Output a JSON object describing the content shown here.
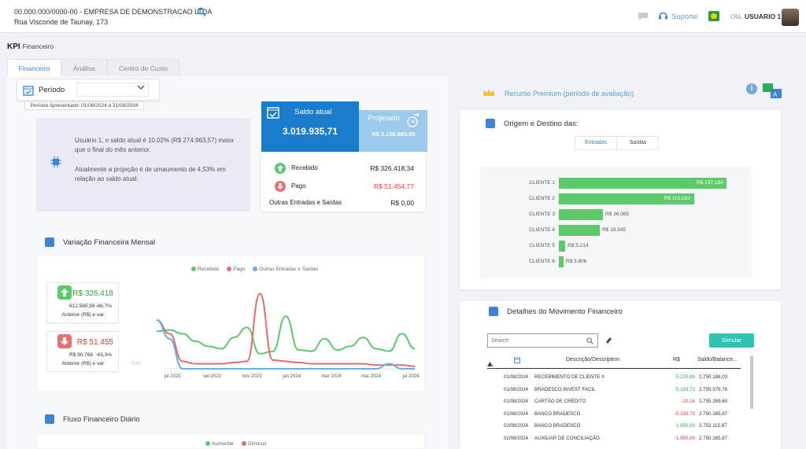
{
  "header": {
    "company": "00.000.000/0000-00 - EMPRESA DE DEMONSTRACAO LTDA",
    "address": "Rua Visconde de Taunay, 173",
    "support": "Suporte",
    "greeting": "Olá,",
    "user": "USUARIO 1"
  },
  "page": {
    "title": "KPI",
    "subtitle": "Financeiro"
  },
  "tabs": [
    {
      "label": "Financeiro",
      "active": true
    },
    {
      "label": "Análise"
    },
    {
      "label": "Centro de Custo"
    }
  ],
  "periodo": {
    "label": "Período",
    "select_value": "",
    "note": "Período Apresentado: 01/08/2024 à 31/08/2024"
  },
  "insight": {
    "text1": "Usuário 1, o saldo atual é 10,02% (R$ 274.963,57) maior que o final do mês anterior.",
    "text2": "Atualmente a projeção é de umaumento de 4,53% em relação ao saldo atual."
  },
  "saldo": {
    "label": "Saldo atual",
    "value": "3.019.935,71",
    "proj_label": "Projetado",
    "proj_value": "R$ 3.156.693,66"
  },
  "movements": [
    {
      "label": "Recebido",
      "value": "R$ 326.418,34",
      "color": "#222"
    },
    {
      "label": "Pago",
      "value": "R$ 51.454,77",
      "color": "#e03b3b"
    },
    {
      "label": "Outras Entradas e Saídas",
      "value": "R$ 0,00",
      "color": "#222"
    }
  ],
  "variacao": {
    "title": "Variação Financeira Mensal",
    "legend": [
      "Recebido",
      "Pago",
      "Outras Entradas e Saídas"
    ],
    "zero_label": "0,00",
    "recebido": {
      "value": "R$ 326.418",
      "prev": "612.565,99",
      "var": "-46,7%",
      "note": "Anterior (R$) e var."
    },
    "pago": {
      "value": "R$ 51.455",
      "prev": "R$ 90.768",
      "var": "-43,3%",
      "note": "Anterior (R$) e var."
    }
  },
  "fluxo": {
    "title": "Fluxo Financeiro Diário",
    "legend": [
      "Aumentar",
      "Diminuir"
    ]
  },
  "premium": {
    "label": "Recurso Premium (período de avaliação)"
  },
  "origem": {
    "title": "Origem e Destino das:",
    "tabs": [
      "Entradas",
      "Saídas"
    ],
    "active_tab": "Entradas"
  },
  "detalhes": {
    "title": "Detalhes do Movimento Financeiro",
    "search_placeholder": "Search",
    "simulate": "Simular",
    "headers": [
      "Descrição/Description",
      "R$",
      "Saldo/Balance..."
    ],
    "rows": [
      {
        "date": "01/08/2024",
        "desc": "RECEBIMENTO DE CLIENTE X",
        "value": "5.215,89",
        "balance": "2.750.186,03",
        "sign": "pos"
      },
      {
        "date": "01/08/2024",
        "desc": "BRADESCO INVEST FACIL",
        "value": "5.193,73",
        "balance": "2.755.379,76",
        "sign": "pos"
      },
      {
        "date": "01/08/2024",
        "desc": "CARTÃO DE CRÉDITO",
        "value": "-20,16",
        "balance": "2.755.359,60",
        "sign": "neg"
      },
      {
        "date": "01/08/2024",
        "desc": "BANCO BRADESCO",
        "value": "-5.193,73",
        "balance": "2.750.165,87",
        "sign": "neg"
      },
      {
        "date": "02/08/2024",
        "desc": "BANCO BRADESCO",
        "value": "1.950,00",
        "balance": "2.752.115,87",
        "sign": "pos"
      },
      {
        "date": "02/08/2024",
        "desc": "AUXILIAR DE CONCILIAÇÃO",
        "value": "-1.950,00",
        "balance": "2.750.165,87",
        "sign": "neg"
      }
    ]
  },
  "chart_data": [
    {
      "type": "bar",
      "title": "",
      "categories": [
        "CLIENTE 1",
        "CLIENTE 2",
        "CLIENTE 3",
        "CLIENTE 4",
        "CLIENTE 5",
        "CLIENTE 6"
      ],
      "values": [
        137184,
        110583,
        36085,
        33545,
        5214,
        3806
      ],
      "labels": [
        "R$ 137.184",
        "R$ 110.583",
        "R$ 36.085",
        "R$ 33.545",
        "R$ 5.214",
        "R$ 3.806"
      ],
      "color": "#5cc96b"
    },
    {
      "type": "line",
      "title": "Variação Financeira Mensal",
      "x_ticks": [
        "jul 2023",
        "set 2023",
        "nov 2023",
        "jan 2024",
        "mar 2024",
        "mai 2024",
        "jul 2024"
      ],
      "series": [
        {
          "name": "Recebido",
          "color": "#5cc96b",
          "values": [
            30,
            31,
            28,
            22,
            18,
            16,
            25,
            33,
            12,
            14,
            42,
            15,
            14,
            24,
            15,
            18,
            25,
            16,
            14,
            28,
            16
          ]
        },
        {
          "name": "Pago",
          "color": "#e86b6b",
          "values": [
            39,
            28,
            6,
            4,
            4,
            4,
            5,
            6,
            60,
            7,
            6,
            5,
            4,
            4,
            4,
            4,
            4,
            3,
            3,
            3,
            2
          ]
        },
        {
          "name": "Outras Entradas e Saídas",
          "color": "#6aaae6",
          "values": [
            39,
            24,
            0,
            0,
            0,
            0,
            0,
            0,
            0,
            0,
            0,
            0,
            0,
            0,
            0,
            0,
            0,
            0,
            4,
            0,
            0
          ]
        }
      ]
    }
  ]
}
